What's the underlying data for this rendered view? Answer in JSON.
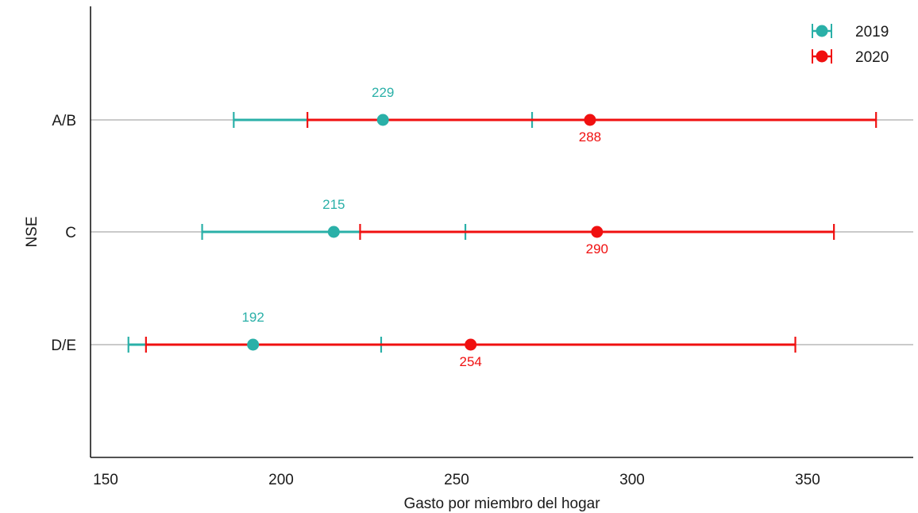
{
  "chart_data": {
    "type": "errorbar",
    "xlabel": "Gasto por miembro del hogar",
    "ylabel": "NSE",
    "xlim": [
      146,
      380
    ],
    "xticks": [
      150,
      200,
      250,
      300,
      350
    ],
    "xtick_labels": [
      "150",
      "200",
      "250",
      "300",
      "350"
    ],
    "categories": [
      "A/B",
      "C",
      "D/E"
    ],
    "grid": "horizontal lines at categories",
    "legend_position": "top-right",
    "series": [
      {
        "name": "2019",
        "color": "#2ab0a8",
        "points": [
          {
            "category": "A/B",
            "value": 229,
            "label": "229",
            "low": 186.5,
            "high": 271.5
          },
          {
            "category": "C",
            "value": 215,
            "label": "215",
            "low": 177.5,
            "high": 252.5
          },
          {
            "category": "D/E",
            "value": 192,
            "label": "192",
            "low": 156.5,
            "high": 228.5
          }
        ]
      },
      {
        "name": "2020",
        "color": "#f01010",
        "points": [
          {
            "category": "A/B",
            "value": 288,
            "label": "288",
            "low": 207.5,
            "high": 369.5
          },
          {
            "category": "C",
            "value": 290,
            "label": "290",
            "low": 222.5,
            "high": 357.5
          },
          {
            "category": "D/E",
            "value": 254,
            "label": "254",
            "low": 161.5,
            "high": 346.5
          }
        ]
      }
    ]
  }
}
